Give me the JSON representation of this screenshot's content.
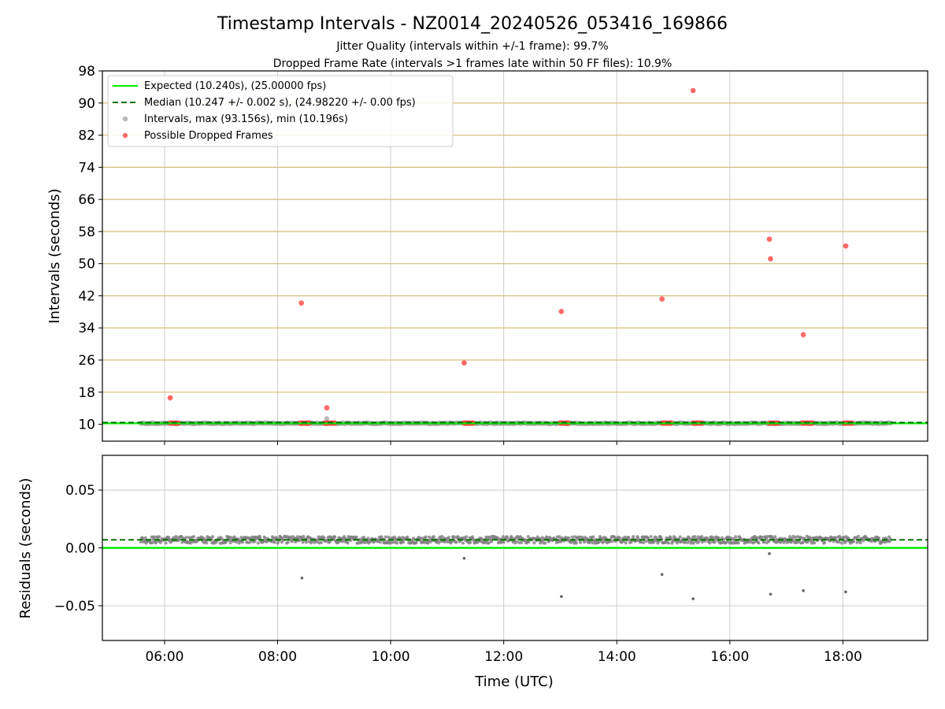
{
  "figure": {
    "title": "Timestamp Intervals - NZ0014_20240526_053416_169866",
    "subtitle_1": "Jitter Quality (intervals within +/-1 frame): 99.7%",
    "subtitle_2": "Dropped Frame Rate (intervals >1 frames late within 50 FF files): 10.9%"
  },
  "colors": {
    "expected": "#00ee00",
    "median": "#007700",
    "intervals": "#808080",
    "dropped": "#ff3b3b",
    "frame_lines": "#d6bf7a",
    "grid": "#cccccc"
  },
  "chart_data": [
    {
      "type": "scatter",
      "panel": "intervals",
      "xlabel": "",
      "ylabel": "Intervals (seconds)",
      "x_unit": "hours UTC",
      "xlim": [
        4.9,
        19.5
      ],
      "ylim": [
        5.8,
        98
      ],
      "xticks": [
        6,
        8,
        10,
        12,
        14,
        16,
        18
      ],
      "xtick_labels": [
        "06:00",
        "08:00",
        "10:00",
        "12:00",
        "14:00",
        "16:00",
        "18:00"
      ],
      "yticks": [
        10,
        18,
        26,
        34,
        42,
        50,
        58,
        66,
        74,
        82,
        90,
        98
      ],
      "ytick_labels": [
        "10",
        "18",
        "26",
        "34",
        "42",
        "50",
        "58",
        "66",
        "74",
        "82",
        "90",
        "98"
      ],
      "frame_lines": [
        18,
        26,
        34,
        42,
        50,
        58,
        66,
        74,
        82,
        90
      ],
      "grid": "vertical",
      "legend_position": "upper-left",
      "legend": [
        {
          "key": "expected",
          "label": "Expected (10.240s), (25.00000 fps)"
        },
        {
          "key": "median",
          "label": "Median (10.247 +/- 0.002 s), (24.98220 +/- 0.00 fps)"
        },
        {
          "key": "intervals",
          "label": "Intervals, max (93.156s), min (10.196s)"
        },
        {
          "key": "dropped",
          "label": "Possible Dropped Frames"
        }
      ],
      "expected_value": 10.24,
      "median_value": 10.247,
      "intervals_x_range": [
        5.58,
        18.85
      ],
      "intervals_y": 10.247,
      "extra_intervals": [
        {
          "x": 8.87,
          "y": 11.4
        }
      ],
      "dropped_points": [
        {
          "x": 6.1,
          "y": 16.6
        },
        {
          "x": 8.42,
          "y": 40.2
        },
        {
          "x": 8.87,
          "y": 14.1
        },
        {
          "x": 11.3,
          "y": 25.3
        },
        {
          "x": 13.02,
          "y": 38.1
        },
        {
          "x": 14.8,
          "y": 41.2
        },
        {
          "x": 15.35,
          "y": 93.1
        },
        {
          "x": 16.7,
          "y": 56.1
        },
        {
          "x": 16.72,
          "y": 51.2
        },
        {
          "x": 17.3,
          "y": 32.3
        },
        {
          "x": 18.05,
          "y": 54.4
        }
      ],
      "dropped_clusters": [
        {
          "x_from": 6.1,
          "x_to": 6.25,
          "y": 10.3
        },
        {
          "x_from": 8.4,
          "x_to": 8.58,
          "y": 10.3
        },
        {
          "x_from": 8.83,
          "x_to": 9.02,
          "y": 10.3
        },
        {
          "x_from": 11.3,
          "x_to": 11.47,
          "y": 10.3
        },
        {
          "x_from": 13.0,
          "x_to": 13.15,
          "y": 10.3
        },
        {
          "x_from": 14.8,
          "x_to": 14.97,
          "y": 10.3
        },
        {
          "x_from": 15.35,
          "x_to": 15.52,
          "y": 10.3
        },
        {
          "x_from": 16.7,
          "x_to": 16.88,
          "y": 10.3
        },
        {
          "x_from": 17.28,
          "x_to": 17.47,
          "y": 10.3
        },
        {
          "x_from": 18.02,
          "x_to": 18.18,
          "y": 10.3
        }
      ]
    },
    {
      "type": "scatter",
      "panel": "residuals",
      "xlabel": "Time (UTC)",
      "ylabel": "Residuals (seconds)",
      "x_unit": "hours UTC",
      "xlim": [
        4.9,
        19.5
      ],
      "ylim": [
        -0.08,
        0.08
      ],
      "xticks": [
        6,
        8,
        10,
        12,
        14,
        16,
        18
      ],
      "xtick_labels": [
        "06:00",
        "08:00",
        "10:00",
        "12:00",
        "14:00",
        "16:00",
        "18:00"
      ],
      "yticks": [
        0.05,
        0.0,
        -0.05
      ],
      "ytick_labels": [
        "0.05",
        "0.00",
        "−0.05"
      ],
      "grid": "both",
      "expected_value": 0.0,
      "median_value": 0.007,
      "residual_band": {
        "x_from": 5.58,
        "x_to": 18.85,
        "center": 0.007,
        "spread": 0.003
      },
      "outliers": [
        {
          "x": 8.43,
          "y": -0.026
        },
        {
          "x": 11.3,
          "y": -0.009
        },
        {
          "x": 13.02,
          "y": -0.042
        },
        {
          "x": 14.8,
          "y": -0.023
        },
        {
          "x": 15.35,
          "y": -0.044
        },
        {
          "x": 16.7,
          "y": -0.005
        },
        {
          "x": 16.72,
          "y": -0.04
        },
        {
          "x": 17.3,
          "y": -0.037
        },
        {
          "x": 18.05,
          "y": -0.038
        }
      ]
    }
  ]
}
